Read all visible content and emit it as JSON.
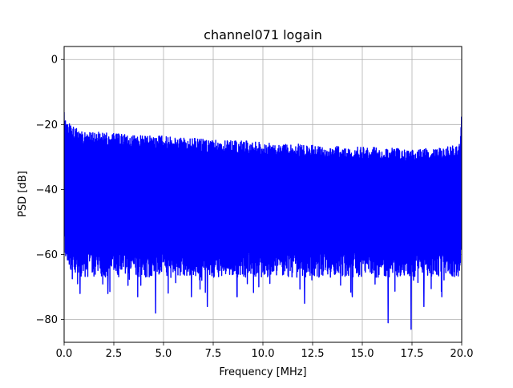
{
  "chart_data": {
    "type": "line",
    "title": "channel071 logain",
    "xlabel": "Frequency [MHz]",
    "ylabel": "PSD [dB]",
    "xlim": [
      0,
      20
    ],
    "ylim": [
      -87,
      4
    ],
    "xticks": [
      0.0,
      2.5,
      5.0,
      7.5,
      10.0,
      12.5,
      15.0,
      17.5,
      20.0
    ],
    "xtick_labels": [
      "0.0",
      "2.5",
      "5.0",
      "7.5",
      "10.0",
      "12.5",
      "15.0",
      "17.5",
      "20.0"
    ],
    "yticks": [
      0,
      -20,
      -40,
      -60,
      -80
    ],
    "ytick_labels": [
      "0",
      "−20",
      "−40",
      "−60",
      "−80"
    ],
    "grid": true,
    "series": [
      {
        "color": "#0000ff",
        "description_points": {
          "x": [
            0.0,
            0.05,
            0.5,
            1.0,
            2.0,
            3.0,
            4.0,
            5.0,
            6.0,
            7.0,
            8.0,
            9.0,
            10.0,
            11.0,
            12.0,
            13.0,
            14.0,
            15.0,
            16.0,
            17.0,
            18.0,
            19.0,
            19.9,
            20.0
          ],
          "upper": [
            -15,
            -18,
            -21,
            -22,
            -22.5,
            -23,
            -23.5,
            -23.5,
            -24,
            -24.5,
            -25,
            -25,
            -25.5,
            -26,
            -26,
            -26.5,
            -26.5,
            -27,
            -27,
            -27.5,
            -27.5,
            -27,
            -26,
            -14
          ],
          "lower": [
            -60,
            -62,
            -66,
            -67,
            -67,
            -67,
            -67,
            -67,
            -67,
            -67,
            -67,
            -67,
            -67,
            -67,
            -67,
            -67,
            -67,
            -67,
            -67,
            -67,
            -67,
            -67,
            -67,
            -60
          ]
        },
        "deep_nulls": [
          {
            "x": 0.8,
            "y": -72
          },
          {
            "x": 2.2,
            "y": -72
          },
          {
            "x": 3.7,
            "y": -73
          },
          {
            "x": 4.6,
            "y": -78
          },
          {
            "x": 6.4,
            "y": -73
          },
          {
            "x": 7.2,
            "y": -76
          },
          {
            "x": 8.7,
            "y": -73
          },
          {
            "x": 12.1,
            "y": -75
          },
          {
            "x": 14.5,
            "y": -73
          },
          {
            "x": 16.3,
            "y": -81
          },
          {
            "x": 17.45,
            "y": -83
          },
          {
            "x": 18.1,
            "y": -76
          },
          {
            "x": 19.0,
            "y": -73
          }
        ],
        "n_points": 1800
      }
    ]
  }
}
